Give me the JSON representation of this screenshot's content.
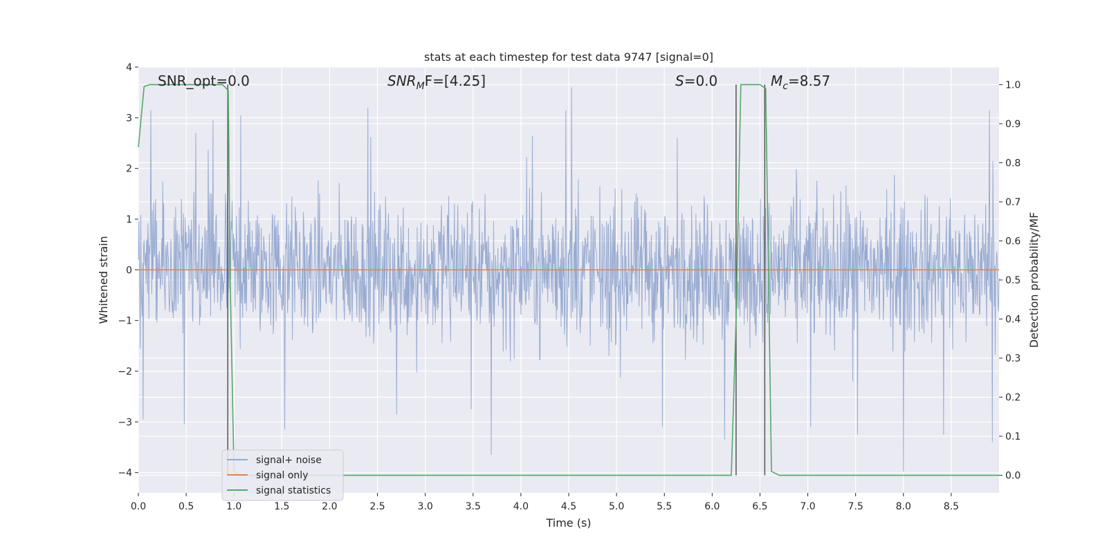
{
  "chart_data": {
    "type": "line",
    "title": "stats at each timestep for test data 9747 [signal=0]",
    "xlabel": "Time (s)",
    "ylabel": "Whitened strain",
    "y2label": "Detection probability/MF",
    "xlim": [
      0.0,
      9.0
    ],
    "ylim": [
      -4.4,
      4.0
    ],
    "y2lim": [
      -0.045,
      1.045
    ],
    "xticks": [
      "0.0",
      "0.5",
      "1.0",
      "1.5",
      "2.0",
      "2.5",
      "3.0",
      "3.5",
      "4.0",
      "4.5",
      "5.0",
      "5.5",
      "6.0",
      "6.5",
      "7.0",
      "7.5",
      "8.0",
      "8.5"
    ],
    "yticks": [
      "4",
      "3",
      "2",
      "1",
      "0",
      "−1",
      "−2",
      "−3",
      "−4"
    ],
    "y2ticks": [
      "1.0",
      "0.9",
      "0.8",
      "0.7",
      "0.6",
      "0.5",
      "0.4",
      "0.3",
      "0.2",
      "0.1",
      "0.0"
    ],
    "grid": true,
    "legend_position": "lower-left",
    "annotations": {
      "snr_opt": "SNR_opt=0.0",
      "snr_mf_base": "SNR",
      "snr_mf_sub": "M",
      "snr_mf_rest": "F=[4.25]",
      "s_var": "S",
      "s_rest": "=0.0",
      "mc_var": "M",
      "mc_sub": "c",
      "mc_rest": "=8.57"
    },
    "series": [
      {
        "name": "signal+ noise",
        "color": "#94a8cf",
        "description_values": "whitened strain noise, roughly within ±1.5 with spikes up to about 3.6 and down to about -4.0",
        "peaks": [
          {
            "t": 0.05,
            "v": -2.95
          },
          {
            "t": 0.13,
            "v": 3.15
          },
          {
            "t": 0.48,
            "v": -3.05
          },
          {
            "t": 0.6,
            "v": 2.7
          },
          {
            "t": 0.78,
            "v": 2.95
          },
          {
            "t": 1.07,
            "v": 3.05
          },
          {
            "t": 1.53,
            "v": -3.15
          },
          {
            "t": 2.4,
            "v": 3.2
          },
          {
            "t": 2.7,
            "v": -2.85
          },
          {
            "t": 3.48,
            "v": -2.75
          },
          {
            "t": 3.69,
            "v": -3.65
          },
          {
            "t": 4.47,
            "v": 3.15
          },
          {
            "t": 4.53,
            "v": 3.6
          },
          {
            "t": 5.48,
            "v": -3.1
          },
          {
            "t": 6.13,
            "v": -3.35
          },
          {
            "t": 6.55,
            "v": -2.4
          },
          {
            "t": 7.03,
            "v": -3.1
          },
          {
            "t": 7.52,
            "v": -3.25
          },
          {
            "t": 8.0,
            "v": -3.98
          },
          {
            "t": 8.42,
            "v": -3.25
          },
          {
            "t": 8.9,
            "v": 3.15
          },
          {
            "t": 8.93,
            "v": -3.4
          }
        ]
      },
      {
        "name": "signal only",
        "color": "#dd8452",
        "t": [
          0.0,
          9.0
        ],
        "v": [
          0.0,
          0.0
        ]
      },
      {
        "name": "signal statistics",
        "color": "#55a868",
        "t": [
          0.0,
          0.06,
          0.12,
          0.3,
          0.6,
          0.88,
          0.94,
          0.96,
          1.0,
          1.05,
          1.5,
          3.0,
          4.5,
          6.0,
          6.2,
          6.25,
          6.3,
          6.35,
          6.5,
          6.56,
          6.62,
          6.7,
          7.0,
          8.0,
          9.0
        ],
        "v": [
          0.84,
          0.995,
          1.0,
          1.0,
          1.0,
          1.0,
          0.985,
          0.5,
          0.01,
          0.0,
          0.0,
          0.0,
          0.0,
          0.0,
          0.0,
          0.4,
          1.0,
          1.0,
          1.0,
          0.99,
          0.01,
          0.0,
          0.0,
          0.0,
          0.0
        ]
      }
    ],
    "markers": [
      {
        "t": 0.935,
        "color": "#555555"
      },
      {
        "t": 6.25,
        "color": "#555555"
      },
      {
        "t": 6.55,
        "color": "#555555"
      }
    ]
  }
}
